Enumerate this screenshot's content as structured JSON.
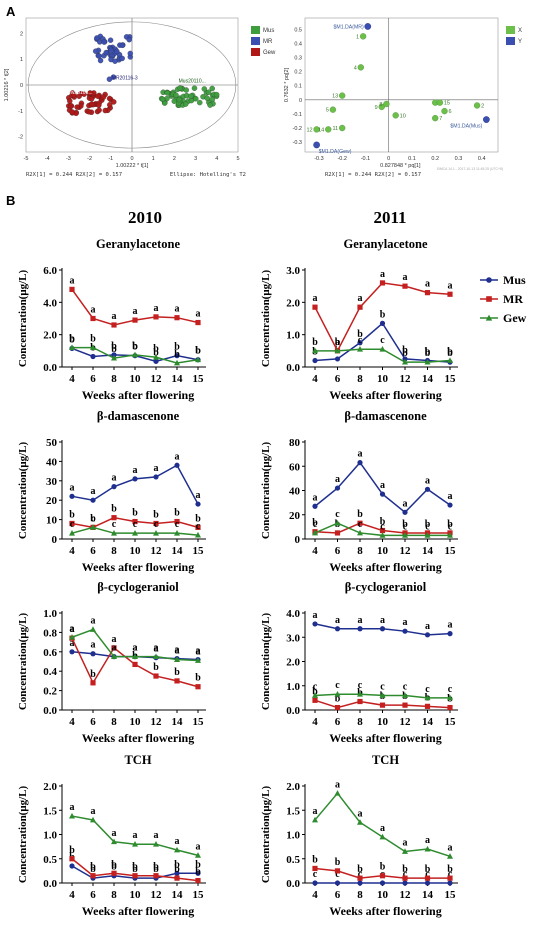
{
  "panel_labels": {
    "a": "A",
    "b": "B"
  },
  "colors": {
    "Mus": "#1f2f8f",
    "MR": "#c42020",
    "Gew": "#2e8b2e",
    "scoreMus": "#3e9e3e",
    "scoreMR": "#3b4fb0",
    "scoreGew": "#b01818"
  },
  "score_plot": {
    "x_axis_label": "1.00222 * t[1]",
    "y_axis_label": "1.00216 * t[2]",
    "x_ticks": [
      "-5",
      "-4",
      "-3",
      "-2",
      "-1",
      "0",
      "1",
      "2",
      "3",
      "4",
      "5"
    ],
    "y_ticks": [
      "2",
      "1",
      "0",
      "-1",
      "-2"
    ],
    "legend": [
      "Mus",
      "MR",
      "Gew"
    ],
    "footer_left": "R2X[1] = 0.244   R2X[2] = 0.157",
    "footer_right": "Ellipse: Hotelling's T2",
    "group_labels": {
      "mr": "MR20116-3",
      "mus": "Mus20110...",
      "gew": "Gew20106..."
    }
  },
  "loading_plot": {
    "x_axis_label": "0.827848 * pq[1]",
    "y_axis_label": "0.7632 * pq[2]",
    "x_ticks": [
      "-0.3",
      "-0.2",
      "-0.1",
      "0",
      "0.1",
      "0.2",
      "0.3",
      "0.4"
    ],
    "y_ticks": [
      "0.5",
      "0.4",
      "0.3",
      "0.2",
      "0.1",
      "0",
      "-0.1",
      "-0.2",
      "-0.3"
    ],
    "legend": [
      "X",
      "Y"
    ],
    "footer": "R2X[1] = 0.244   R2X[2] = 0.157",
    "footer_small": "SIMCA 14.1 - 2017-10-13 11:45:25 (UTC+8)",
    "y_labels": [
      "$M1.DA(MR)",
      "$M1.DA(Gew)",
      "$M1.DA(Mus)"
    ],
    "points": [
      {
        "id": "1",
        "x": -0.11,
        "y": 0.45
      },
      {
        "id": "4",
        "x": -0.12,
        "y": 0.23
      },
      {
        "id": "13",
        "x": -0.2,
        "y": 0.03
      },
      {
        "id": "5",
        "x": -0.24,
        "y": -0.07
      },
      {
        "id": "9",
        "x": -0.03,
        "y": -0.05
      },
      {
        "id": "8",
        "x": -0.01,
        "y": -0.03
      },
      {
        "id": "10",
        "x": 0.03,
        "y": -0.11
      },
      {
        "id": "12",
        "x": -0.31,
        "y": -0.21
      },
      {
        "id": "14",
        "x": -0.26,
        "y": -0.21
      },
      {
        "id": "11",
        "x": -0.2,
        "y": -0.2
      },
      {
        "id": "3",
        "x": 0.2,
        "y": -0.02
      },
      {
        "id": "15",
        "x": 0.22,
        "y": -0.02
      },
      {
        "id": "6",
        "x": 0.24,
        "y": -0.08
      },
      {
        "id": "7",
        "x": 0.2,
        "y": -0.13
      },
      {
        "id": "2",
        "x": 0.38,
        "y": -0.04
      }
    ],
    "y_points": [
      {
        "x": -0.09,
        "y": 0.52
      },
      {
        "x": -0.31,
        "y": -0.32
      },
      {
        "x": 0.42,
        "y": -0.14
      }
    ]
  },
  "year_labels": [
    "2010",
    "2011"
  ],
  "legend_b": [
    "Mus",
    "MR",
    "Gew"
  ],
  "chart_data": [
    {
      "type": "line",
      "title": "Geranylacetone",
      "year": "2010",
      "xlabel": "Weeks after flowering",
      "ylabel": "Concentration(μg/L)",
      "categories": [
        "4",
        "6",
        "8",
        "10",
        "12",
        "14",
        "15"
      ],
      "ylim": [
        0,
        6
      ],
      "yticks": [
        "0.0",
        "2.0",
        "4.0",
        "6.0"
      ],
      "series": [
        {
          "name": "Mus",
          "values": [
            1.15,
            0.65,
            0.75,
            0.7,
            0.35,
            0.7,
            0.45
          ],
          "letters": [
            "b",
            "b",
            "b",
            "b",
            "b",
            "b",
            "b"
          ]
        },
        {
          "name": "MR",
          "values": [
            4.8,
            3.0,
            2.6,
            2.9,
            3.1,
            3.05,
            2.75
          ],
          "letters": [
            "a",
            "a",
            "a",
            "a",
            "a",
            "a",
            "a"
          ]
        },
        {
          "name": "Gew",
          "values": [
            1.2,
            1.2,
            0.55,
            0.75,
            0.6,
            0.25,
            0.45
          ],
          "letters": [
            "b",
            "b",
            "b",
            "b",
            "b",
            "b",
            "b"
          ]
        }
      ]
    },
    {
      "type": "line",
      "title": "Geranylacetone",
      "year": "2011",
      "xlabel": "Weeks after flowering",
      "ylabel": "Concentration(μg/L)",
      "categories": [
        "4",
        "6",
        "8",
        "10",
        "12",
        "14",
        "15"
      ],
      "ylim": [
        0,
        3
      ],
      "yticks": [
        "0.0",
        "1.0",
        "2.0",
        "3.0"
      ],
      "series": [
        {
          "name": "Mus",
          "values": [
            0.2,
            0.25,
            0.75,
            1.35,
            0.25,
            0.2,
            0.15
          ],
          "letters": [
            "b",
            "b",
            "b",
            "b",
            "b",
            "b",
            "b"
          ]
        },
        {
          "name": "MR",
          "values": [
            1.85,
            0.5,
            1.85,
            2.6,
            2.5,
            2.3,
            2.25
          ],
          "letters": [
            "a",
            "a",
            "a",
            "a",
            "a",
            "a",
            "a"
          ]
        },
        {
          "name": "Gew",
          "values": [
            0.5,
            0.5,
            0.55,
            0.55,
            0.15,
            0.15,
            0.2
          ],
          "letters": [
            "b",
            "b",
            "c",
            "c",
            "b",
            "b",
            "b"
          ]
        }
      ]
    },
    {
      "type": "line",
      "title": "β-damascenone",
      "year": "2010",
      "xlabel": "Weeks after flowering",
      "ylabel": "Concentration(μg/L)",
      "categories": [
        "4",
        "6",
        "8",
        "10",
        "12",
        "14",
        "15"
      ],
      "ylim": [
        0,
        50
      ],
      "yticks": [
        "0",
        "10",
        "20",
        "30",
        "40",
        "50"
      ],
      "series": [
        {
          "name": "Mus",
          "values": [
            22,
            20,
            27,
            31,
            32,
            38,
            18
          ],
          "letters": [
            "a",
            "a",
            "a",
            "a",
            "a",
            "a",
            "a"
          ]
        },
        {
          "name": "MR",
          "values": [
            8,
            6,
            11,
            9,
            8,
            9,
            6
          ],
          "letters": [
            "b",
            "b",
            "b",
            "b",
            "b",
            "b",
            "b"
          ]
        },
        {
          "name": "Gew",
          "values": [
            3,
            6,
            3,
            3,
            3,
            3,
            2
          ],
          "letters": [
            "c",
            "c",
            "c",
            "c",
            "c",
            "c",
            "c"
          ]
        }
      ]
    },
    {
      "type": "line",
      "title": "β-damascenone",
      "year": "2011",
      "xlabel": "Weeks after flowering",
      "ylabel": "Concentration(μg/L)",
      "categories": [
        "4",
        "6",
        "8",
        "10",
        "12",
        "14",
        "15"
      ],
      "ylim": [
        0,
        80
      ],
      "yticks": [
        "0",
        "20",
        "40",
        "60",
        "80"
      ],
      "series": [
        {
          "name": "Mus",
          "values": [
            27,
            42,
            63,
            37,
            22,
            41,
            28
          ],
          "letters": [
            "a",
            "a",
            "a",
            "a",
            "a",
            "a",
            "a"
          ]
        },
        {
          "name": "MR",
          "values": [
            6,
            5,
            13,
            7,
            5,
            5,
            5
          ],
          "letters": [
            "b",
            "b",
            "b",
            "b",
            "b",
            "b",
            "b"
          ]
        },
        {
          "name": "Gew",
          "values": [
            5,
            13,
            5,
            3,
            3,
            3,
            3
          ],
          "letters": [
            "c",
            "c",
            "c",
            "c",
            "c",
            "c",
            "c"
          ]
        }
      ]
    },
    {
      "type": "line",
      "title": "β-cyclogeraniol",
      "year": "2010",
      "xlabel": "Weeks after flowering",
      "ylabel": "Concentration(μg/L)",
      "categories": [
        "4",
        "6",
        "8",
        "10",
        "12",
        "14",
        "15"
      ],
      "ylim": [
        0,
        1.0
      ],
      "yticks": [
        "0.0",
        "0.2",
        "0.4",
        "0.6",
        "0.8",
        "1.0"
      ],
      "series": [
        {
          "name": "Mus",
          "values": [
            0.6,
            0.58,
            0.55,
            0.55,
            0.54,
            0.53,
            0.52
          ],
          "letters": [
            "a",
            "a",
            "a",
            "a",
            "a",
            "a",
            "a"
          ]
        },
        {
          "name": "MR",
          "values": [
            0.74,
            0.28,
            0.64,
            0.47,
            0.35,
            0.3,
            0.24
          ],
          "letters": [
            "a",
            "b",
            "a",
            "b",
            "b",
            "b",
            "b"
          ]
        },
        {
          "name": "Gew",
          "values": [
            0.75,
            0.83,
            0.55,
            0.55,
            0.55,
            0.52,
            0.51
          ],
          "letters": [
            "a",
            "a",
            "a",
            "a",
            "a",
            "a",
            "a"
          ]
        }
      ]
    },
    {
      "type": "line",
      "title": "β-cyclogeraniol",
      "year": "2011",
      "xlabel": "Weeks after flowering",
      "ylabel": "Concentration(μg/L)",
      "categories": [
        "4",
        "6",
        "8",
        "10",
        "12",
        "14",
        "15"
      ],
      "ylim": [
        0,
        4.0
      ],
      "yticks": [
        "0.0",
        "1.0",
        "2.0",
        "3.0",
        "4.0"
      ],
      "series": [
        {
          "name": "Mus",
          "values": [
            3.55,
            3.35,
            3.35,
            3.35,
            3.25,
            3.1,
            3.15
          ],
          "letters": [
            "a",
            "a",
            "a",
            "a",
            "a",
            "a",
            "a"
          ]
        },
        {
          "name": "MR",
          "values": [
            0.4,
            0.1,
            0.35,
            0.2,
            0.2,
            0.15,
            0.1
          ],
          "letters": [
            "b",
            "b",
            "b",
            "b",
            "b",
            "b",
            "b"
          ]
        },
        {
          "name": "Gew",
          "values": [
            0.6,
            0.65,
            0.65,
            0.6,
            0.6,
            0.5,
            0.5
          ],
          "letters": [
            "c",
            "c",
            "c",
            "c",
            "c",
            "c",
            "c"
          ]
        }
      ]
    },
    {
      "type": "line",
      "title": "TCH",
      "year": "2010",
      "xlabel": "Weeks after flowering",
      "ylabel": "Concentration(μg/L)",
      "categories": [
        "4",
        "6",
        "8",
        "10",
        "12",
        "14",
        "15"
      ],
      "ylim": [
        0,
        2.0
      ],
      "yticks": [
        "0.0",
        "0.5",
        "1.0",
        "1.5",
        "2.0"
      ],
      "series": [
        {
          "name": "Mus",
          "values": [
            0.35,
            0.1,
            0.15,
            0.1,
            0.1,
            0.2,
            0.2
          ],
          "letters": [
            "b",
            "b",
            "b",
            "b",
            "b",
            "b",
            "b"
          ]
        },
        {
          "name": "MR",
          "values": [
            0.5,
            0.15,
            0.2,
            0.15,
            0.15,
            0.1,
            0.05
          ],
          "letters": [
            "b",
            "b",
            "b",
            "b",
            "b",
            "b",
            "b"
          ]
        },
        {
          "name": "Gew",
          "values": [
            1.38,
            1.3,
            0.85,
            0.8,
            0.8,
            0.68,
            0.57
          ],
          "letters": [
            "a",
            "a",
            "a",
            "a",
            "a",
            "a",
            "a"
          ]
        }
      ]
    },
    {
      "type": "line",
      "title": "TCH",
      "year": "2011",
      "xlabel": "Weeks after flowering",
      "ylabel": "Concentration(μg/L)",
      "categories": [
        "4",
        "6",
        "8",
        "10",
        "12",
        "14",
        "15"
      ],
      "ylim": [
        0,
        2.0
      ],
      "yticks": [
        "0.0",
        "0.5",
        "1.0",
        "1.5",
        "2.0"
      ],
      "series": [
        {
          "name": "Mus",
          "values": [
            0.0,
            0.0,
            0.0,
            0.0,
            0.0,
            0.0,
            0.0
          ],
          "letters": [
            "c",
            "c",
            "c",
            "c",
            "c",
            "c",
            "c"
          ]
        },
        {
          "name": "MR",
          "values": [
            0.3,
            0.25,
            0.1,
            0.15,
            0.1,
            0.1,
            0.1
          ],
          "letters": [
            "b",
            "b",
            "b",
            "b",
            "b",
            "b",
            "b"
          ]
        },
        {
          "name": "Gew",
          "values": [
            1.3,
            1.85,
            1.25,
            0.95,
            0.65,
            0.7,
            0.55
          ],
          "letters": [
            "a",
            "a",
            "a",
            "a",
            "a",
            "a",
            "a"
          ]
        }
      ]
    }
  ]
}
